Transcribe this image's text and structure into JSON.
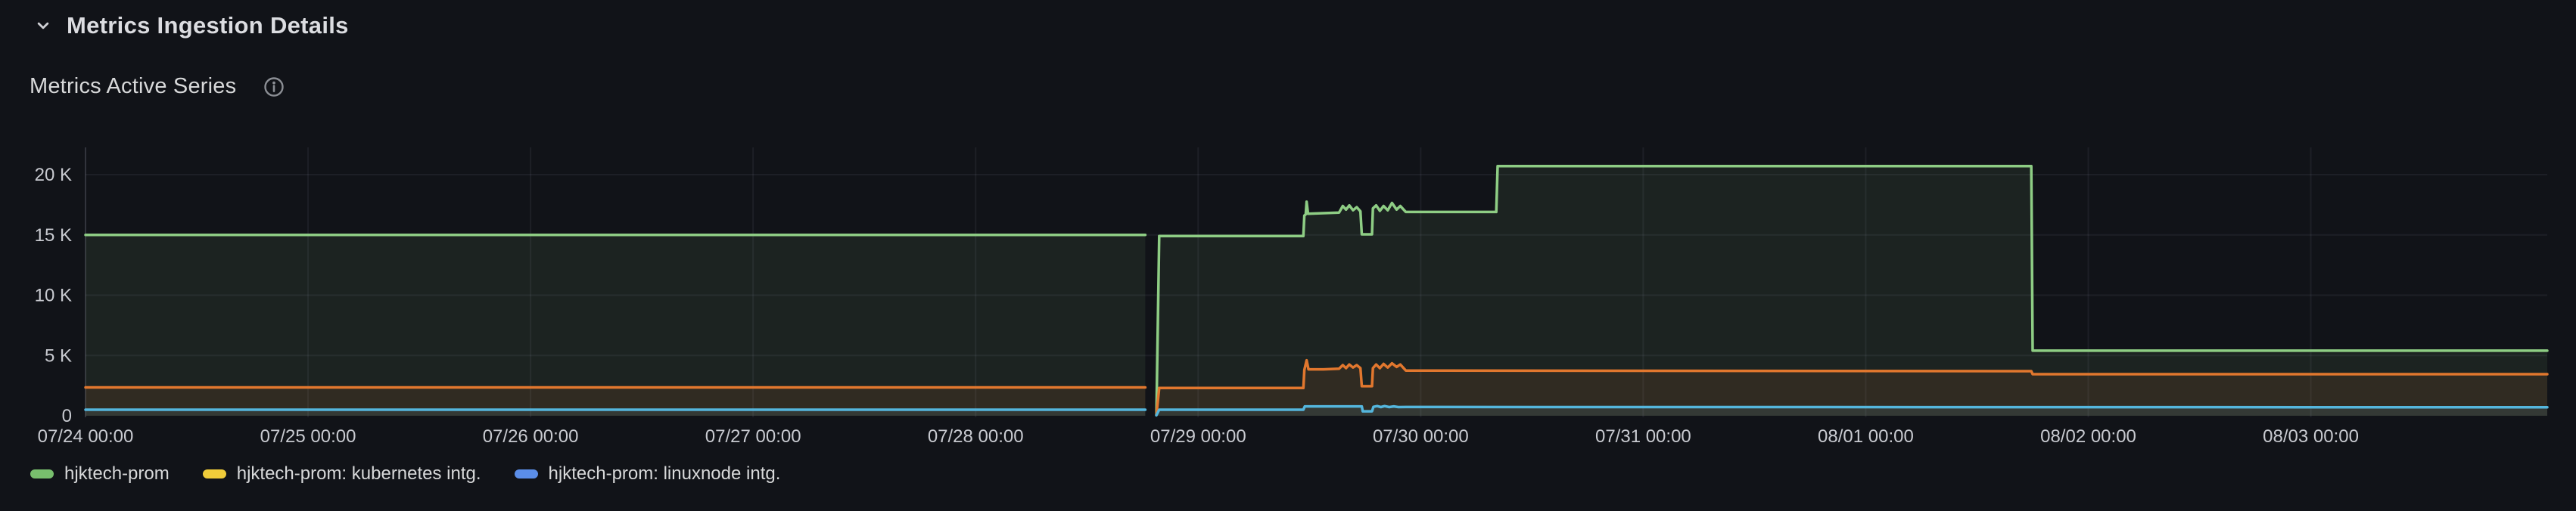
{
  "header": {
    "section_title": "Metrics Ingestion Details"
  },
  "panel": {
    "title": "Metrics Active Series"
  },
  "icons": {
    "section_collapse": "chevron-down-icon",
    "panel_info": "info-circle-icon"
  },
  "colors": {
    "background": "#111318",
    "grid": "rgba(204,204,220,0.07)",
    "axis_line": "rgba(204,204,220,0.12)",
    "axis_text": "#c8cad0",
    "title_text": "#d8d9da",
    "icon_gray": "#8b8e94"
  },
  "chart_data": {
    "type": "area",
    "title": "Metrics Active Series",
    "xlabel": "",
    "ylabel": "",
    "grid": true,
    "legend_position": "bottom",
    "x_axis": {
      "range_hours": [
        0,
        265.5
      ],
      "tick_hours": [
        0,
        24,
        48,
        72,
        96,
        120,
        144,
        168,
        192,
        216,
        240
      ],
      "tick_labels": [
        "07/24 00:00",
        "07/25 00:00",
        "07/26 00:00",
        "07/27 00:00",
        "07/28 00:00",
        "07/29 00:00",
        "07/30 00:00",
        "07/31 00:00",
        "08/01 00:00",
        "08/02 00:00",
        "08/03 00:00"
      ]
    },
    "y_axis": {
      "range": [
        0,
        22000
      ],
      "tick_values": [
        0,
        5000,
        10000,
        15000,
        20000
      ],
      "tick_labels": [
        "0",
        "5 K",
        "10 K",
        "15 K",
        "20 K"
      ]
    },
    "series": [
      {
        "name": "hjktech-prom",
        "line_color": "#8ecd84",
        "legend_color": "#78bf6d",
        "fill_opacity": 0.09,
        "points": [
          [
            0,
            15000
          ],
          [
            114.3,
            15000
          ],
          null,
          [
            115.5,
            80
          ],
          [
            115.8,
            14900
          ],
          [
            131.35,
            14900
          ],
          [
            131.45,
            16600
          ],
          [
            131.6,
            16700
          ],
          [
            131.7,
            17750
          ],
          [
            131.85,
            16750
          ],
          [
            133.5,
            16800
          ],
          [
            135.2,
            16850
          ],
          [
            135.6,
            17400
          ],
          [
            135.95,
            17100
          ],
          [
            136.3,
            17450
          ],
          [
            136.7,
            17050
          ],
          [
            137.1,
            17300
          ],
          [
            137.5,
            16950
          ],
          [
            137.65,
            15050
          ],
          [
            138.75,
            15050
          ],
          [
            138.85,
            17200
          ],
          [
            139.2,
            17450
          ],
          [
            139.6,
            17000
          ],
          [
            140.0,
            17400
          ],
          [
            140.45,
            17050
          ],
          [
            140.9,
            17650
          ],
          [
            141.4,
            17100
          ],
          [
            141.8,
            17400
          ],
          [
            142.4,
            16900
          ],
          [
            152.15,
            16900
          ],
          [
            152.3,
            20700
          ],
          [
            209.85,
            20700
          ],
          [
            210.0,
            5400
          ],
          [
            265.5,
            5400
          ]
        ]
      },
      {
        "name": "hjktech-prom: kubernetes intg.",
        "line_color": "#e1772e",
        "legend_color": "#f0cc3a",
        "fill_opacity": 0.1,
        "points": [
          [
            0,
            2350
          ],
          [
            114.3,
            2350
          ],
          null,
          [
            115.5,
            60
          ],
          [
            115.8,
            2300
          ],
          [
            131.35,
            2300
          ],
          [
            131.45,
            3800
          ],
          [
            131.7,
            4600
          ],
          [
            131.9,
            3850
          ],
          [
            133.5,
            3850
          ],
          [
            135.2,
            3900
          ],
          [
            135.6,
            4200
          ],
          [
            135.95,
            3950
          ],
          [
            136.3,
            4250
          ],
          [
            136.7,
            4000
          ],
          [
            137.1,
            4200
          ],
          [
            137.5,
            3950
          ],
          [
            137.65,
            2450
          ],
          [
            138.75,
            2450
          ],
          [
            138.85,
            3950
          ],
          [
            139.2,
            4250
          ],
          [
            139.6,
            3950
          ],
          [
            140.0,
            4300
          ],
          [
            140.45,
            4000
          ],
          [
            140.9,
            4350
          ],
          [
            141.4,
            4050
          ],
          [
            141.8,
            4250
          ],
          [
            142.4,
            3750
          ],
          [
            209.85,
            3700
          ],
          [
            210.0,
            3450
          ],
          [
            265.5,
            3450
          ]
        ]
      },
      {
        "name": "hjktech-prom: linuxnode intg.",
        "line_color": "#54b6dd",
        "legend_color": "#5b8ee9",
        "fill_opacity": 0.1,
        "points": [
          [
            0,
            500
          ],
          [
            114.3,
            500
          ],
          null,
          [
            115.5,
            40
          ],
          [
            115.8,
            500
          ],
          [
            131.35,
            500
          ],
          [
            131.5,
            780
          ],
          [
            137.65,
            780
          ],
          [
            137.75,
            370
          ],
          [
            138.75,
            370
          ],
          [
            138.9,
            740
          ],
          [
            139.3,
            800
          ],
          [
            139.7,
            720
          ],
          [
            140.1,
            800
          ],
          [
            140.6,
            720
          ],
          [
            141.1,
            780
          ],
          [
            141.6,
            720
          ],
          [
            142.4,
            730
          ],
          [
            265.5,
            700
          ]
        ]
      }
    ]
  }
}
